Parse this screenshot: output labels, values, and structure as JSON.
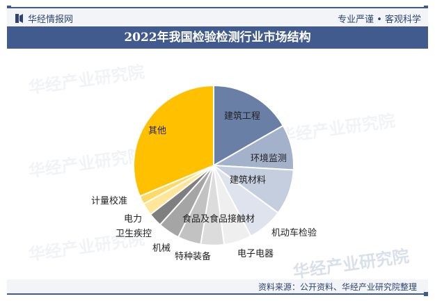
{
  "header": {
    "brand": "华经情报网",
    "slogan": "专业严谨 • 客观科学",
    "title": "2022年我国检验检测行业市场结构"
  },
  "footer": {
    "source": "资料来源：公开资料、华经产业研究院整理"
  },
  "watermark": {
    "text": "华经产业研究院",
    "url": "www.huaon.com"
  },
  "chart_data": {
    "type": "pie",
    "title": "2022年我国检验检测行业市场结构",
    "start_angle": 0,
    "direction": "clockwise",
    "legend": "none (labels on/near slices)",
    "slices": [
      {
        "label": "建筑工程",
        "value": 16.7,
        "color": "#6a7fa6"
      },
      {
        "label": "环境监测",
        "value": 9.2,
        "color": "#a3b1cb"
      },
      {
        "label": "建筑材料",
        "value": 9.2,
        "color": "#c5cede"
      },
      {
        "label": "机动车检验",
        "value": 7.2,
        "color": "#dfe3ed"
      },
      {
        "label": "电子电器",
        "value": 5.6,
        "color": "#efefef"
      },
      {
        "label": "食品及食品接触材",
        "value": 4.7,
        "color": "#dcdcdc"
      },
      {
        "label": "特种装备",
        "value": 4.7,
        "color": "#c2c2c2"
      },
      {
        "label": "机械",
        "value": 4.4,
        "color": "#a5a5a5"
      },
      {
        "label": "卫生疾控",
        "value": 2.8,
        "color": "#7f7f7f"
      },
      {
        "label": "电力",
        "value": 2.5,
        "color": "#ffe699"
      },
      {
        "label": "计量校准",
        "value": 1.7,
        "color": "#ffd965"
      },
      {
        "label": "其他",
        "value": 31.3,
        "color": "#ffc000"
      }
    ]
  }
}
